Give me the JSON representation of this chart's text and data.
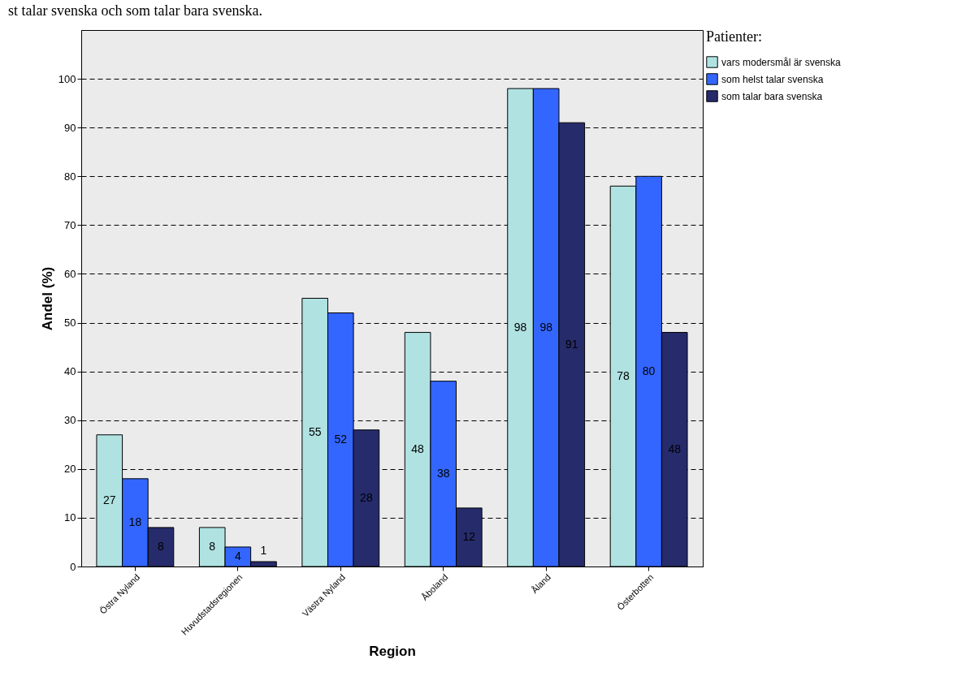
{
  "chart_data": {
    "type": "bar",
    "title": "st talar svenska och som talar bara svenska.",
    "xlabel": "Region",
    "ylabel": "Andel (%)",
    "legend_title": "Patienter:",
    "categories": [
      "Östra Nyland",
      "Huvudstadsregionen",
      "Västra Nyland",
      "Åboland",
      "Åland",
      "Österbotten"
    ],
    "series": [
      {
        "name": "vars modersmål är svenska",
        "color": "#b0e2e2",
        "values": [
          27,
          8,
          55,
          48,
          98,
          78
        ]
      },
      {
        "name": "som helst talar svenska",
        "color": "#3366ff",
        "values": [
          18,
          4,
          52,
          38,
          98,
          80
        ]
      },
      {
        "name": "som talar bara svenska",
        "color": "#262b6b",
        "values": [
          8,
          1,
          28,
          12,
          91,
          48
        ]
      }
    ],
    "ylim": [
      0,
      110
    ],
    "yticks": [
      0,
      10,
      20,
      30,
      40,
      50,
      60,
      70,
      80,
      90,
      100
    ],
    "grid": "y",
    "legend": "top right",
    "data_labels": true
  }
}
